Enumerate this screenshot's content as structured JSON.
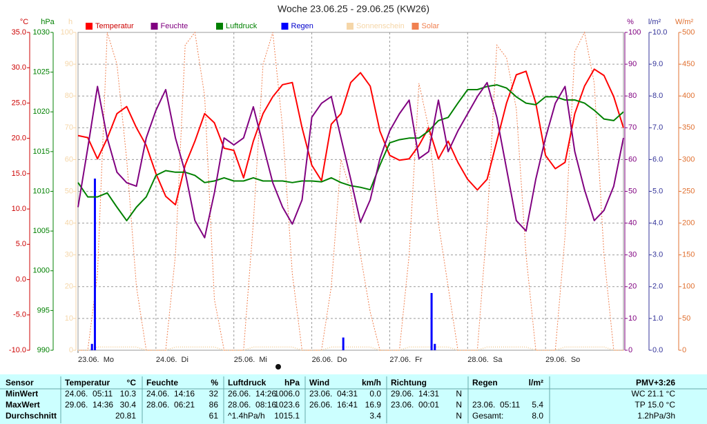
{
  "chart_data": {
    "type": "line",
    "title": "Woche 23.06.25 - 29.06.25 (KW26)",
    "xlim": [
      0,
      168
    ],
    "xticks": [
      {
        "value": 0,
        "label": "23.06.  Mo"
      },
      {
        "value": 24,
        "label": "24.06.  Di"
      },
      {
        "value": 48,
        "label": "25.06.  Mi"
      },
      {
        "value": 72,
        "label": "26.06.  Do"
      },
      {
        "value": 96,
        "label": "27.06.  Fr"
      },
      {
        "value": 120,
        "label": "28.06.  Sa"
      },
      {
        "value": 144,
        "label": "29.06.  So"
      }
    ],
    "grid": true,
    "axes": [
      {
        "label": "°C",
        "color": "#cc0000",
        "lim": [
          -10,
          35
        ],
        "ticks": [
          {
            "value": -10,
            "label": "-10.0"
          },
          {
            "value": -5,
            "label": "-5.0"
          },
          {
            "value": 0,
            "label": "0.0"
          },
          {
            "value": 5,
            "label": "5.0"
          },
          {
            "value": 10,
            "label": "10.0"
          },
          {
            "value": 15,
            "label": "15.0"
          },
          {
            "value": 20,
            "label": "20.0"
          },
          {
            "value": 25,
            "label": "25.0"
          },
          {
            "value": 30,
            "label": "30.0"
          },
          {
            "value": 35,
            "label": "35.0"
          }
        ]
      },
      {
        "label": "hPa",
        "color": "#008000",
        "lim": [
          990,
          1030
        ],
        "ticks": [
          990,
          995,
          1000,
          1005,
          1010,
          1015,
          1020,
          1025,
          1030
        ]
      },
      {
        "label": "h",
        "color": "#f5d6a8",
        "lim": [
          0,
          100
        ],
        "ticks": [
          0,
          10,
          20,
          30,
          40,
          50,
          60,
          70,
          80,
          90,
          100
        ]
      },
      {
        "label": "%",
        "color": "#800080",
        "lim": [
          0,
          100
        ],
        "ticks": [
          0,
          10,
          20,
          30,
          40,
          50,
          60,
          70,
          80,
          90,
          100
        ]
      },
      {
        "label": "l/m²",
        "color": "#333399",
        "lim": [
          0,
          10
        ],
        "ticks": [
          {
            "value": 0,
            "label": "0.0"
          },
          {
            "value": 1,
            "label": "1.0"
          },
          {
            "value": 2,
            "label": "2.0"
          },
          {
            "value": 3,
            "label": "3.0"
          },
          {
            "value": 4,
            "label": "4.0"
          },
          {
            "value": 5,
            "label": "5.0"
          },
          {
            "value": 6,
            "label": "6.0"
          },
          {
            "value": 7,
            "label": "7.0"
          },
          {
            "value": 8,
            "label": "8.0"
          },
          {
            "value": 9,
            "label": "9.0"
          },
          {
            "value": 10,
            "label": "10.0"
          }
        ]
      },
      {
        "label": "W/m²",
        "color": "#e07030",
        "lim": [
          0,
          500
        ],
        "ticks": [
          0,
          50,
          100,
          150,
          200,
          250,
          300,
          350,
          400,
          450,
          500
        ]
      }
    ],
    "x": [
      0,
      3,
      6,
      9,
      12,
      15,
      18,
      21,
      24,
      27,
      30,
      33,
      36,
      39,
      42,
      45,
      48,
      51,
      54,
      57,
      60,
      63,
      66,
      69,
      72,
      75,
      78,
      81,
      84,
      87,
      90,
      93,
      96,
      99,
      102,
      105,
      108,
      111,
      114,
      117,
      120,
      123,
      126,
      129,
      132,
      135,
      138,
      141,
      144,
      147,
      150,
      153,
      156,
      159,
      162,
      165,
      168
    ],
    "series": [
      {
        "name": "Temperatur",
        "color": "#ff0000",
        "axis": 0,
        "style": "line",
        "values": [
          20.4,
          20.1,
          17.1,
          20,
          23.5,
          24.5,
          21.5,
          19,
          15,
          11.8,
          10.6,
          16.2,
          19.6,
          23.5,
          22.2,
          18.6,
          18.3,
          14.4,
          19.6,
          23.5,
          25.9,
          27.6,
          27.9,
          21.5,
          16.2,
          14,
          22,
          23.5,
          27.9,
          29.3,
          27.4,
          21,
          17.6,
          16.9,
          17.1,
          19,
          21.5,
          17.1,
          19.6,
          16.6,
          14.2,
          12.7,
          14.2,
          19.6,
          25,
          29,
          29.5,
          25,
          17.6,
          15.7,
          16.6,
          23.5,
          27.4,
          29.8,
          28.9,
          25.9,
          21.5
        ]
      },
      {
        "name": "Feuchte",
        "color": "#800080",
        "axis": 3,
        "style": "line",
        "values": [
          45,
          63.6,
          83,
          66.8,
          56,
          52.7,
          51.6,
          66.8,
          75.5,
          82,
          66.8,
          56,
          40.8,
          35.4,
          49.5,
          66.8,
          64.6,
          66.8,
          76.6,
          64.6,
          52.7,
          45,
          39.7,
          47.3,
          73.3,
          77.7,
          79.8,
          66.8,
          53.8,
          40.3,
          47.3,
          60.3,
          69,
          74.4,
          78.7,
          60.3,
          62.5,
          78.7,
          62.5,
          69,
          74.4,
          79.8,
          84.2,
          73.3,
          57,
          40.8,
          37.5,
          53.8,
          66.8,
          77.7,
          83,
          62.5,
          50.5,
          40.8,
          44,
          51.6,
          66.8
        ]
      },
      {
        "name": "Luftdruck",
        "color": "#008000",
        "axis": 1,
        "style": "line",
        "values": [
          1011.1,
          1009.3,
          1009.3,
          1009.8,
          1008,
          1006.3,
          1008,
          1009.3,
          1012,
          1012.6,
          1012.4,
          1012.4,
          1012,
          1011.1,
          1011.3,
          1011.7,
          1011.3,
          1011.3,
          1011.7,
          1011.3,
          1011.3,
          1011.3,
          1011.1,
          1011.3,
          1011.3,
          1011.2,
          1011.7,
          1011.1,
          1010.7,
          1010.5,
          1010.2,
          1013.3,
          1016.1,
          1016.5,
          1016.7,
          1016.7,
          1017.6,
          1018.9,
          1019.3,
          1021.1,
          1022.8,
          1022.8,
          1023.2,
          1023.4,
          1023,
          1021.9,
          1021.1,
          1020.9,
          1021.9,
          1021.9,
          1021.5,
          1021.5,
          1021.1,
          1020.2,
          1019.1,
          1018.9,
          1020
        ]
      },
      {
        "name": "Regen",
        "color": "#0000ff",
        "axis": 4,
        "style": "bar",
        "x": [
          4.3,
          5.2,
          81.7,
          108.9,
          109.9
        ],
        "values": [
          0.2,
          5.4,
          0.4,
          1.8,
          0.2
        ]
      },
      {
        "name": "Sonnenschein",
        "color": "#f5d6a8",
        "axis": 2,
        "style": "dots",
        "values": [
          0,
          0,
          1,
          1,
          1,
          1,
          1,
          0,
          0,
          0,
          1,
          1,
          1,
          1,
          1,
          0,
          0,
          0,
          1,
          1,
          1,
          1,
          1,
          0,
          0,
          0,
          1,
          1,
          1,
          1,
          1,
          0,
          0,
          0,
          1,
          1,
          1,
          1,
          1,
          0,
          0,
          0,
          1,
          1,
          1,
          1,
          1,
          0,
          0,
          0,
          1,
          1,
          1,
          1,
          1,
          0,
          0
        ]
      },
      {
        "name": "Solar",
        "color": "#f08050",
        "axis": 5,
        "style": "dotted",
        "values": [
          0,
          0,
          120,
          500,
          450,
          300,
          100,
          0,
          0,
          0,
          150,
          480,
          500,
          400,
          80,
          0,
          0,
          0,
          200,
          450,
          500,
          350,
          120,
          0,
          0,
          0,
          100,
          300,
          250,
          150,
          60,
          0,
          0,
          0,
          150,
          420,
          350,
          200,
          100,
          0,
          0,
          0,
          200,
          480,
          460,
          380,
          150,
          0,
          0,
          0,
          180,
          470,
          500,
          420,
          150,
          0,
          0
        ]
      }
    ]
  },
  "table": {
    "sensor": "Sensor",
    "columns": [
      {
        "name": "Temperatur",
        "unit": "°C"
      },
      {
        "name": "Feuchte",
        "unit": "%"
      },
      {
        "name": "Luftdruck",
        "unit": "hPa"
      },
      {
        "name": "Wind",
        "unit": "km/h"
      },
      {
        "name": "Richtung"
      },
      {
        "name": "Regen",
        "unit": "l/m²"
      },
      {
        "name": "PMV+3:26"
      }
    ],
    "rows": [
      {
        "label": "MinWert",
        "cells": [
          {
            "time": "24.06.  05:11",
            "value": "10.3"
          },
          {
            "time": "24.06.  14:16",
            "value": "32"
          },
          {
            "time": "26.06.  14:26",
            "value": "1006.0"
          },
          {
            "time": "23.06.  04:31",
            "value": "0.0"
          },
          {
            "time": "29.06.  14:31",
            "value": "N"
          },
          {},
          {
            "value": "WC 21.1 °C"
          }
        ]
      },
      {
        "label": "MaxWert",
        "cells": [
          {
            "time": "29.06.  14:36",
            "value": "30.4"
          },
          {
            "time": "28.06.  06:21",
            "value": "86"
          },
          {
            "time": "28.06.  08:16",
            "value": "1023.6"
          },
          {
            "time": "26.06.  16:41",
            "value": "16.9"
          },
          {
            "time": "23.06.  00:01",
            "value": "N"
          },
          {
            "time": "23.06.  05:11",
            "value": "5.4"
          },
          {
            "value": "TP 15.0 °C"
          }
        ]
      },
      {
        "label": "Durchschnitt",
        "cells": [
          {
            "value": "20.81"
          },
          {
            "value": "61"
          },
          {
            "time": "^1.4hPa/h",
            "value": "1015.1"
          },
          {
            "value": "3.4"
          },
          {
            "value": "N"
          },
          {
            "time": "Gesamt:",
            "value": "8.0"
          },
          {
            "value": "1.2hPa/3h"
          }
        ]
      }
    ]
  }
}
